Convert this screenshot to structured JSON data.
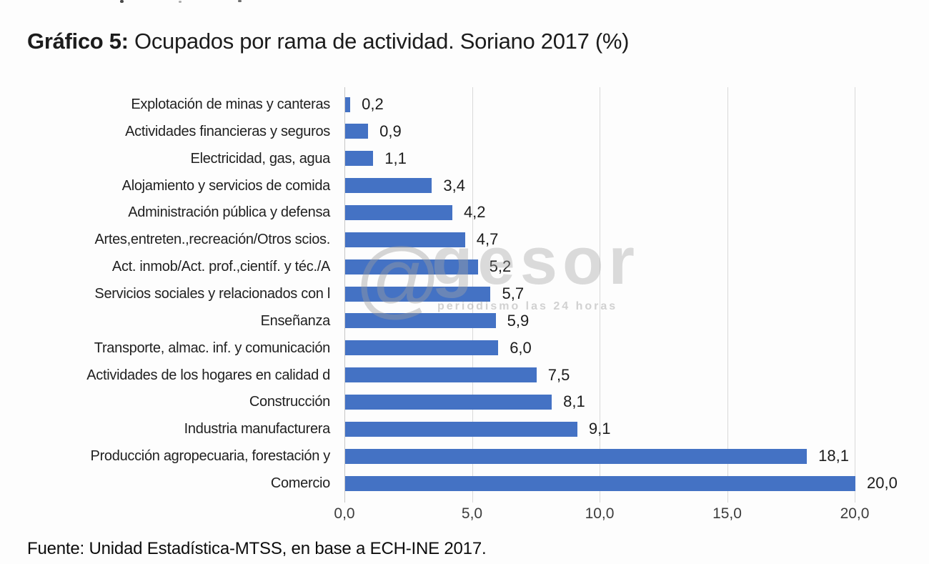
{
  "title": {
    "prefix": "Gráfico 5:",
    "rest": " Ocupados por rama de actividad. Soriano 2017 (%)"
  },
  "footer": {
    "source": "Fuente: Unidad Estadística-MTSS, en base a ECH-INE 2017."
  },
  "watermark": {
    "at": "@",
    "name": "gesor",
    "tagline": "periodismo las 24 horas"
  },
  "colors": {
    "bar": "#4472C4",
    "gridline": "#D9D9D9",
    "text": "#212121"
  },
  "chart_data": {
    "type": "bar",
    "orientation": "horizontal",
    "title": "Gráfico 5: Ocupados por rama de actividad. Soriano 2017 (%)",
    "xlabel": "",
    "ylabel": "",
    "xlim": [
      0,
      20
    ],
    "grid": true,
    "legend": false,
    "categories": [
      "Explotación de minas y canteras",
      "Actividades financieras y seguros",
      "Electricidad, gas, agua",
      "Alojamiento y servicios de comida",
      "Administración pública y defensa",
      "Artes,entreten.,recreación/Otros scios.",
      "Act. inmob/Act. prof.,científ. y téc./A",
      "Servicios sociales y relacionados con l",
      "Enseñanza",
      "Transporte, almac. inf. y comunicación",
      "Actividades de los hogares en calidad d",
      "Construcción",
      "Industria manufacturera",
      "Producción agropecuaria, forestación y",
      "Comercio"
    ],
    "values": [
      0.2,
      0.9,
      1.1,
      3.4,
      4.2,
      4.7,
      5.2,
      5.7,
      5.9,
      6.0,
      7.5,
      8.1,
      9.1,
      18.1,
      20.0
    ],
    "value_labels": [
      "0,2",
      "0,9",
      "1,1",
      "3,4",
      "4,2",
      "4,7",
      "5,2",
      "5,7",
      "5,9",
      "6,0",
      "7,5",
      "8,1",
      "9,1",
      "18,1",
      "20,0"
    ],
    "xticks": [
      "0,0",
      "5,0",
      "10,0",
      "15,0",
      "20,0"
    ],
    "xtick_values": [
      0,
      5,
      10,
      15,
      20
    ],
    "source": "Fuente: Unidad Estadística-MTSS, en base a ECH-INE 2017."
  }
}
